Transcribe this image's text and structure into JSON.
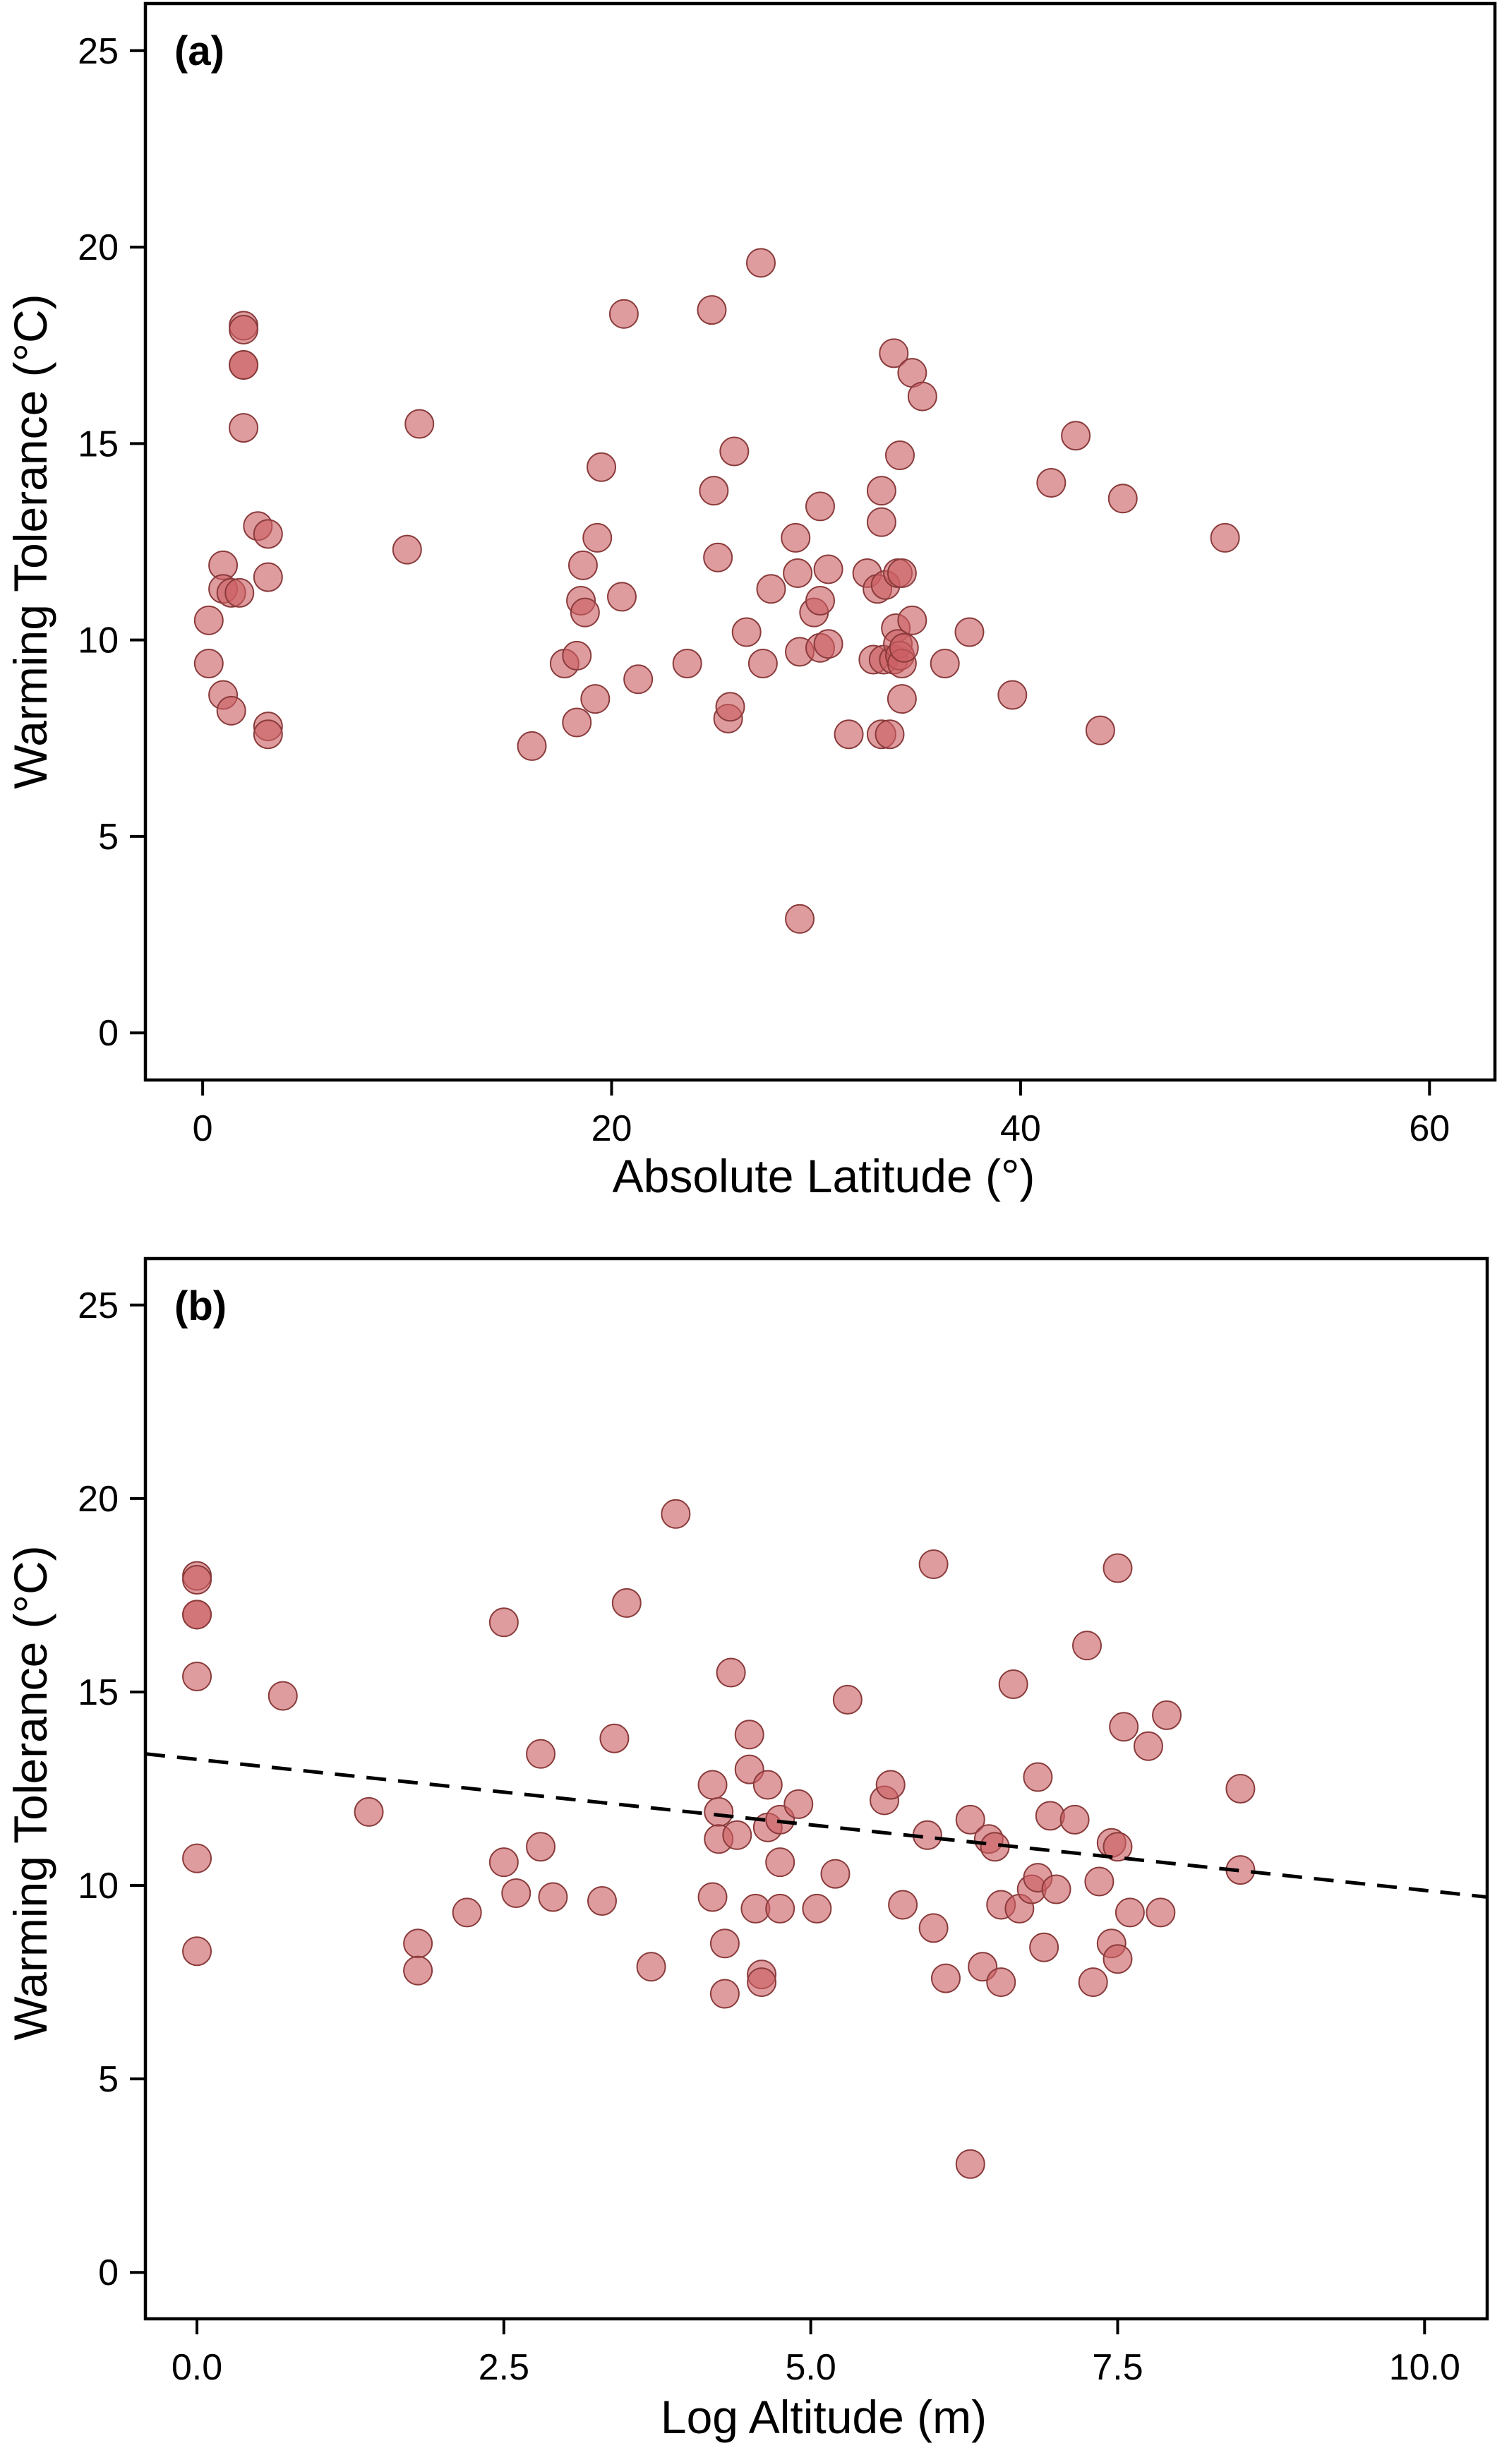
{
  "colors": {
    "point_fill": "#cc5f64",
    "point_stroke": "#8a3b3b",
    "axis": "#000000"
  },
  "chart_data": [
    {
      "type": "scatter",
      "panel_label": "(a)",
      "xlabel": "Absolute Latitude (°)",
      "ylabel": "Warming Tolerance (°C)",
      "xlim": [
        -2.8,
        63.2
      ],
      "ylim": [
        -1.2,
        26.2
      ],
      "xticks": [
        0,
        20,
        40,
        60
      ],
      "yticks": [
        0,
        5,
        10,
        15,
        20,
        25
      ],
      "grid": false,
      "legend": "none",
      "trendline": null,
      "points": [
        [
          0.3,
          10.5
        ],
        [
          0.3,
          9.4
        ],
        [
          1.0,
          8.6
        ],
        [
          1.4,
          8.2
        ],
        [
          1.0,
          11.9
        ],
        [
          1.0,
          11.3
        ],
        [
          1.4,
          11.2
        ],
        [
          1.8,
          11.2
        ],
        [
          2.0,
          15.4
        ],
        [
          2.0,
          17.0
        ],
        [
          2.0,
          17.0
        ],
        [
          2.0,
          18.0
        ],
        [
          2.0,
          17.9
        ],
        [
          2.7,
          12.9
        ],
        [
          3.2,
          12.7
        ],
        [
          3.2,
          11.6
        ],
        [
          3.2,
          7.8
        ],
        [
          3.2,
          7.6
        ],
        [
          10.0,
          12.3
        ],
        [
          10.6,
          15.5
        ],
        [
          16.1,
          7.3
        ],
        [
          17.7,
          9.4
        ],
        [
          18.3,
          7.9
        ],
        [
          18.3,
          9.6
        ],
        [
          18.5,
          11.0
        ],
        [
          18.6,
          11.9
        ],
        [
          18.7,
          10.7
        ],
        [
          19.2,
          8.5
        ],
        [
          19.3,
          12.6
        ],
        [
          19.5,
          14.4
        ],
        [
          20.5,
          11.1
        ],
        [
          20.6,
          18.3
        ],
        [
          21.3,
          9.0
        ],
        [
          23.7,
          9.4
        ],
        [
          24.9,
          18.4
        ],
        [
          25.0,
          13.8
        ],
        [
          25.2,
          12.1
        ],
        [
          25.7,
          8.0
        ],
        [
          25.8,
          8.3
        ],
        [
          26.0,
          14.8
        ],
        [
          26.6,
          10.2
        ],
        [
          27.3,
          19.6
        ],
        [
          27.4,
          9.4
        ],
        [
          27.8,
          11.3
        ],
        [
          29.0,
          12.6
        ],
        [
          29.1,
          11.7
        ],
        [
          29.2,
          2.9
        ],
        [
          29.2,
          9.7
        ],
        [
          29.9,
          10.7
        ],
        [
          30.2,
          13.4
        ],
        [
          30.2,
          11.0
        ],
        [
          30.2,
          9.8
        ],
        [
          30.6,
          9.9
        ],
        [
          30.6,
          11.8
        ],
        [
          31.6,
          7.6
        ],
        [
          32.5,
          11.7
        ],
        [
          32.8,
          9.5
        ],
        [
          33.0,
          11.3
        ],
        [
          33.2,
          13.0
        ],
        [
          33.2,
          13.8
        ],
        [
          33.2,
          7.6
        ],
        [
          33.3,
          9.5
        ],
        [
          33.4,
          11.4
        ],
        [
          33.6,
          7.6
        ],
        [
          33.8,
          17.3
        ],
        [
          33.8,
          9.5
        ],
        [
          33.9,
          10.3
        ],
        [
          34.0,
          9.9
        ],
        [
          34.0,
          11.7
        ],
        [
          34.1,
          14.7
        ],
        [
          34.1,
          9.6
        ],
        [
          34.2,
          11.7
        ],
        [
          34.2,
          8.5
        ],
        [
          34.2,
          9.4
        ],
        [
          34.3,
          9.8
        ],
        [
          34.7,
          10.5
        ],
        [
          34.7,
          16.8
        ],
        [
          35.2,
          16.2
        ],
        [
          36.3,
          9.4
        ],
        [
          37.5,
          10.2
        ],
        [
          39.6,
          8.6
        ],
        [
          41.5,
          14.0
        ],
        [
          42.7,
          15.2
        ],
        [
          43.9,
          7.7
        ],
        [
          45.0,
          13.6
        ],
        [
          50.0,
          12.6
        ]
      ]
    },
    {
      "type": "scatter",
      "panel_label": "(b)",
      "xlabel": "Log Altitude (m)",
      "ylabel": "Warming Tolerance (°C)",
      "xlim": [
        -0.42,
        10.51
      ],
      "ylim": [
        -1.2,
        26.2
      ],
      "xticks": [
        0.0,
        2.5,
        5.0,
        7.5,
        10.0
      ],
      "xtick_labels": [
        "0.0",
        "2.5",
        "5.0",
        "7.5",
        "10.0"
      ],
      "yticks": [
        0,
        5,
        10,
        15,
        20,
        25
      ],
      "grid": false,
      "legend": "none",
      "trendline": {
        "style": "dashed",
        "x": [
          -0.42,
          10.51
        ],
        "y": [
          13.4,
          9.7
        ]
      },
      "points": [
        [
          0.0,
          18.0
        ],
        [
          0.0,
          17.9
        ],
        [
          0.0,
          17.0
        ],
        [
          0.0,
          17.0
        ],
        [
          0.0,
          15.4
        ],
        [
          0.0,
          10.7
        ],
        [
          0.0,
          8.3
        ],
        [
          0.7,
          14.9
        ],
        [
          1.4,
          11.9
        ],
        [
          1.8,
          8.5
        ],
        [
          1.8,
          7.8
        ],
        [
          2.2,
          9.3
        ],
        [
          2.5,
          16.8
        ],
        [
          2.5,
          10.6
        ],
        [
          2.6,
          9.8
        ],
        [
          2.8,
          13.4
        ],
        [
          2.8,
          11.0
        ],
        [
          2.9,
          9.7
        ],
        [
          3.3,
          9.6
        ],
        [
          3.4,
          13.8
        ],
        [
          3.5,
          17.3
        ],
        [
          3.7,
          7.9
        ],
        [
          3.9,
          19.6
        ],
        [
          4.2,
          12.6
        ],
        [
          4.2,
          9.7
        ],
        [
          4.25,
          11.9
        ],
        [
          4.3,
          8.5
        ],
        [
          4.25,
          11.2
        ],
        [
          4.3,
          7.2
        ],
        [
          4.35,
          15.5
        ],
        [
          4.4,
          11.3
        ],
        [
          4.5,
          13.9
        ],
        [
          4.5,
          13.0
        ],
        [
          4.55,
          9.4
        ],
        [
          4.6,
          7.7
        ],
        [
          4.6,
          7.5
        ],
        [
          4.65,
          12.6
        ],
        [
          4.65,
          11.5
        ],
        [
          4.75,
          11.7
        ],
        [
          4.75,
          10.6
        ],
        [
          4.75,
          9.4
        ],
        [
          4.9,
          12.1
        ],
        [
          5.05,
          9.4
        ],
        [
          5.2,
          10.3
        ],
        [
          5.3,
          14.8
        ],
        [
          5.6,
          12.2
        ],
        [
          5.65,
          12.6
        ],
        [
          5.75,
          9.5
        ],
        [
          5.95,
          11.3
        ],
        [
          6.0,
          18.3
        ],
        [
          6.0,
          8.9
        ],
        [
          6.1,
          7.6
        ],
        [
          6.3,
          11.7
        ],
        [
          6.3,
          2.8
        ],
        [
          6.4,
          7.9
        ],
        [
          6.45,
          11.2
        ],
        [
          6.5,
          11.0
        ],
        [
          6.55,
          9.5
        ],
        [
          6.55,
          7.5
        ],
        [
          6.65,
          15.2
        ],
        [
          6.7,
          9.4
        ],
        [
          6.8,
          9.9
        ],
        [
          6.85,
          10.2
        ],
        [
          6.85,
          12.8
        ],
        [
          6.9,
          8.4
        ],
        [
          6.95,
          11.8
        ],
        [
          7.0,
          9.9
        ],
        [
          7.15,
          11.7
        ],
        [
          7.25,
          16.2
        ],
        [
          7.3,
          7.5
        ],
        [
          7.35,
          10.1
        ],
        [
          7.45,
          8.5
        ],
        [
          7.45,
          11.1
        ],
        [
          7.5,
          8.1
        ],
        [
          7.5,
          18.2
        ],
        [
          7.5,
          11.0
        ],
        [
          7.55,
          14.1
        ],
        [
          7.6,
          9.3
        ],
        [
          7.75,
          13.6
        ],
        [
          7.85,
          9.3
        ],
        [
          7.9,
          14.4
        ],
        [
          8.5,
          12.5
        ],
        [
          8.5,
          10.4
        ]
      ]
    }
  ]
}
